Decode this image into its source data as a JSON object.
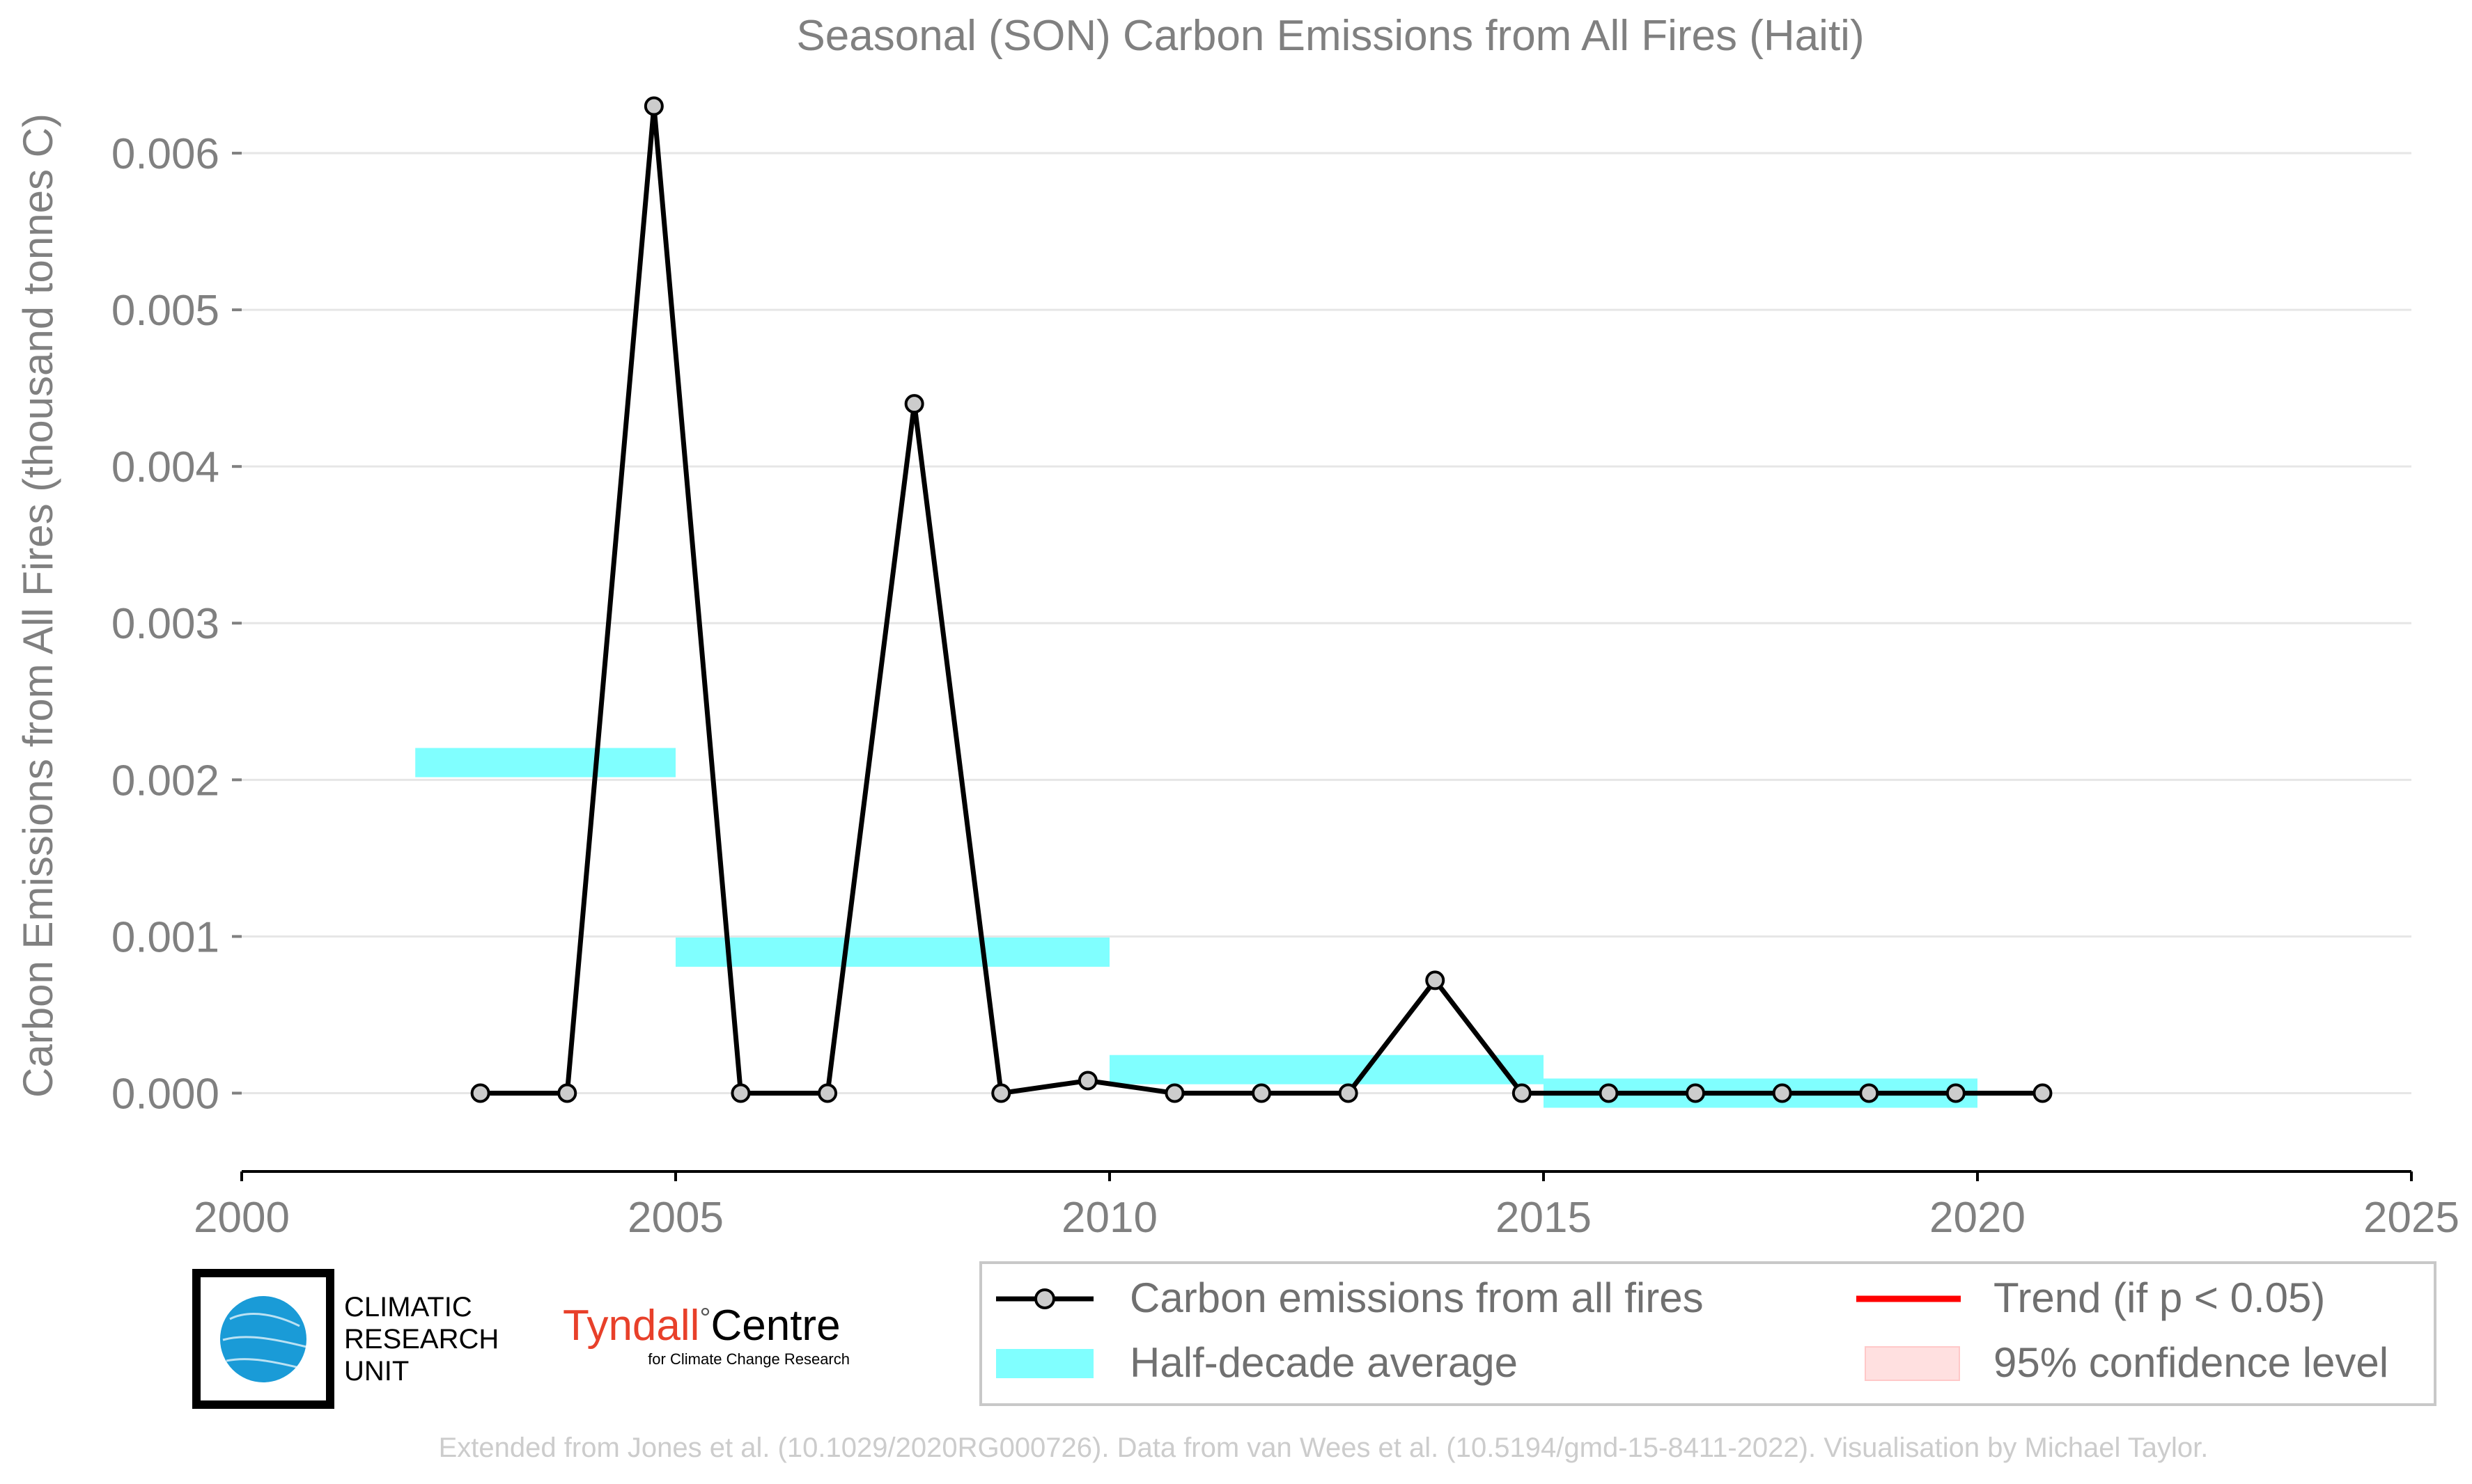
{
  "chart_data": {
    "type": "line",
    "title": "Seasonal (SON) Carbon Emissions from All Fires (Haiti)",
    "xlabel": "",
    "ylabel": "Carbon Emissions from All Fires (thousand tonnes C)",
    "xlim": [
      2000,
      2025
    ],
    "ylim": [
      -0.0005,
      0.0064
    ],
    "x_ticks": [
      "2000",
      "2005",
      "2010",
      "2015",
      "2020",
      "2025"
    ],
    "y_ticks": [
      "0.000",
      "0.001",
      "0.002",
      "0.003",
      "0.004",
      "0.005",
      "0.006"
    ],
    "grid": "horizontal",
    "series": [
      {
        "name": "Carbon emissions from all fires",
        "color": "#000000",
        "marker_fill": "#cccccc",
        "x": [
          2002.75,
          2003.75,
          2004.75,
          2005.75,
          2006.75,
          2007.75,
          2008.75,
          2009.75,
          2010.75,
          2011.75,
          2012.75,
          2013.75,
          2014.75,
          2015.75,
          2016.75,
          2017.75,
          2018.75,
          2019.75,
          2020.75
        ],
        "values": [
          0.0,
          0.0,
          0.0063,
          0.0,
          0.0,
          0.0044,
          0.0,
          8e-05,
          0.0,
          0.0,
          0.0,
          0.00072,
          0.0,
          0.0,
          0.0,
          0.0,
          0.0,
          0.0,
          0.0
        ]
      }
    ],
    "half_decade_average": {
      "name": "Half-decade average",
      "color": "#80ffff",
      "periods": [
        {
          "start": 2002,
          "end": 2005,
          "value": 0.00211
        },
        {
          "start": 2005,
          "end": 2010,
          "value": 0.0009
        },
        {
          "start": 2010,
          "end": 2015,
          "value": 0.00015
        },
        {
          "start": 2015,
          "end": 2020,
          "value": 0.0
        }
      ]
    },
    "legend": {
      "placement": "bottom-right",
      "entries": [
        {
          "label": "Carbon emissions from all fires",
          "color": "#000000"
        },
        {
          "label": "Trend (if p < 0.05)",
          "color": "#ff0000"
        },
        {
          "label": "Half-decade average",
          "color": "#80ffff"
        },
        {
          "label": "95% confidence level",
          "color": "#ffe0e0"
        }
      ]
    }
  },
  "logos": {
    "cru": [
      "CLIMATIC",
      "RESEARCH",
      "UNIT"
    ],
    "tyndall_main": "Tyndall",
    "tyndall_degree": "°",
    "tyndall_centre": "Centre",
    "tyndall_sub": "for Climate Change Research"
  },
  "credit": "Extended from Jones et al. (10.1029/2020RG000726). Data from van Wees et al. (10.5194/gmd-15-8411-2022). Visualisation by Michael Taylor."
}
